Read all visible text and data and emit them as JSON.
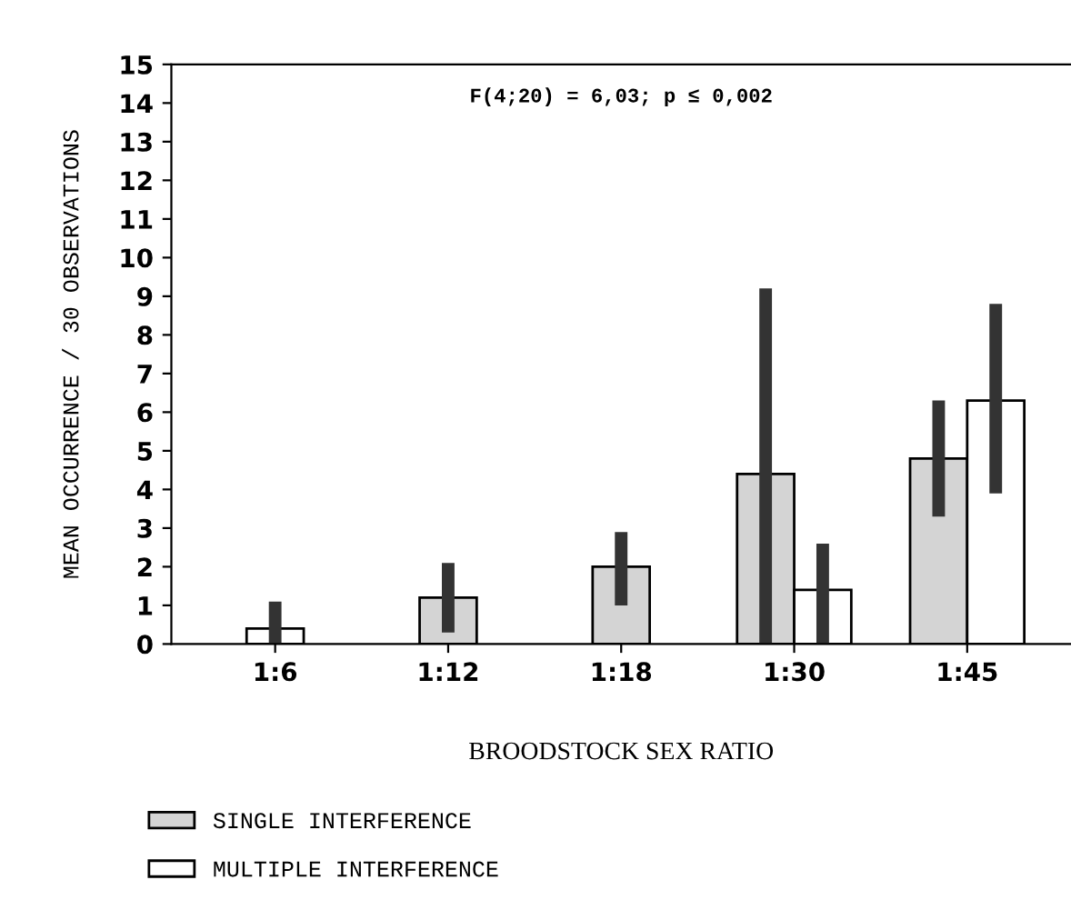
{
  "chart_data": {
    "type": "bar",
    "categories": [
      "1:6",
      "1:12",
      "1:18",
      "1:30",
      "1:45"
    ],
    "series": [
      {
        "name": "SINGLE INTERFERENCE",
        "color": "#d4d4d4",
        "values": [
          null,
          1.2,
          2.0,
          4.4,
          4.8
        ],
        "errors": [
          null,
          [
            0.3,
            2.1
          ],
          [
            1.0,
            2.9
          ],
          [
            0,
            9.2
          ],
          [
            3.3,
            6.3
          ]
        ]
      },
      {
        "name": "MULTIPLE INTERFERENCE",
        "color": "#ffffff",
        "values": [
          0.4,
          null,
          null,
          1.4,
          6.3
        ],
        "errors": [
          [
            0,
            1.1
          ],
          null,
          null,
          [
            0,
            2.6
          ],
          [
            3.9,
            8.8
          ]
        ]
      }
    ],
    "xlabel": "BROODSTOCK SEX RATIO",
    "ylabel": "MEAN OCCURRENCE / 30 OBSERVATIONS",
    "annotations": [
      "F(4;20) = 6,03; p ≤ 0,002"
    ],
    "ylim": [
      0,
      15
    ],
    "yticks": [
      0,
      1,
      2,
      3,
      4,
      5,
      6,
      7,
      8,
      9,
      10,
      11,
      12,
      13,
      14,
      15
    ],
    "grid": false,
    "legend": "bottom"
  }
}
